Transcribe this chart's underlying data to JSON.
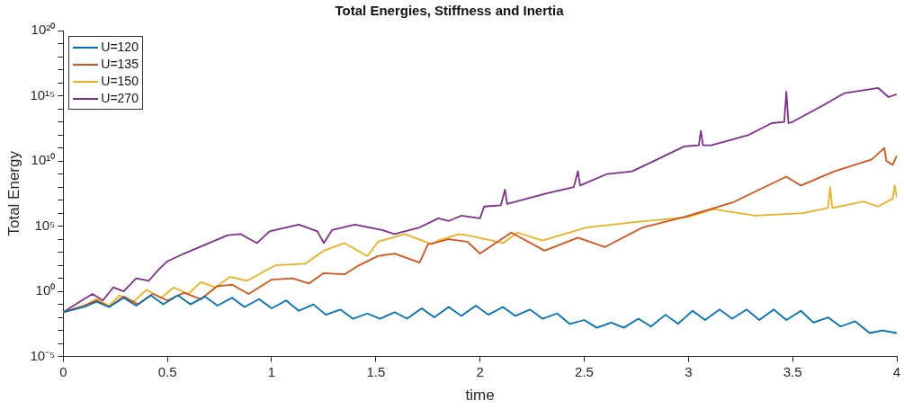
{
  "chart_data": {
    "type": "line",
    "title": "Total Energies, Stiffness and Inertia",
    "xlabel": "time",
    "ylabel": "Total Energy",
    "log": "y",
    "grid": false,
    "legend": "top left",
    "marker": "none",
    "line_style": "solid",
    "xlim": [
      0,
      4
    ],
    "xticks": [
      0,
      0.5,
      1,
      1.5,
      2,
      2.5,
      3,
      3.5,
      4
    ],
    "ylim": [
      1e-05,
      1e+20
    ],
    "yticks": [
      {
        "value": 1e-05,
        "label": "10⁻⁵"
      },
      {
        "value": 0.0001,
        "label": null
      },
      {
        "value": 0.001,
        "label": null
      },
      {
        "value": 0.01,
        "label": null
      },
      {
        "value": 0.1,
        "label": null
      },
      {
        "value": 1,
        "label": "10⁰"
      },
      {
        "value": 10.0,
        "label": null
      },
      {
        "value": 100.0,
        "label": null
      },
      {
        "value": 1000.0,
        "label": null
      },
      {
        "value": 10000.0,
        "label": null
      },
      {
        "value": 100000.0,
        "label": "10⁵"
      },
      {
        "value": 1000000.0,
        "label": null
      },
      {
        "value": 10000000.0,
        "label": null
      },
      {
        "value": 100000000.0,
        "label": null
      },
      {
        "value": 1000000000.0,
        "label": null
      },
      {
        "value": 10000000000.0,
        "label": "10¹⁰"
      },
      {
        "value": 100000000000.0,
        "label": null
      },
      {
        "value": 1000000000000.0,
        "label": null
      },
      {
        "value": 10000000000000.0,
        "label": null
      },
      {
        "value": 100000000000000.0,
        "label": null
      },
      {
        "value": 1000000000000000.0,
        "label": "10¹⁵"
      },
      {
        "value": 1e+16,
        "label": null
      },
      {
        "value": 1e+17,
        "label": null
      },
      {
        "value": 1e+18,
        "label": null
      },
      {
        "value": 1e+19,
        "label": null
      },
      {
        "value": 1e+20,
        "label": "10²⁰"
      }
    ],
    "series": [
      {
        "name": "U=120",
        "color": "#0072bd",
        "x": [
          0,
          0.1,
          0.16,
          0.22,
          0.29,
          0.35,
          0.42,
          0.48,
          0.55,
          0.61,
          0.68,
          0.74,
          0.81,
          0.87,
          0.94,
          1.0,
          1.07,
          1.13,
          1.2,
          1.26,
          1.33,
          1.39,
          1.46,
          1.52,
          1.59,
          1.65,
          1.72,
          1.78,
          1.85,
          1.91,
          1.98,
          2.04,
          2.11,
          2.17,
          2.24,
          2.3,
          2.37,
          2.43,
          2.5,
          2.56,
          2.63,
          2.69,
          2.76,
          2.82,
          2.89,
          2.95,
          3.02,
          3.08,
          3.15,
          3.21,
          3.28,
          3.34,
          3.41,
          3.47,
          3.54,
          3.6,
          3.67,
          3.73,
          3.8,
          3.87,
          3.93,
          4.0
        ],
        "values": [
          0.025,
          0.063,
          0.16,
          0.063,
          0.32,
          0.079,
          0.5,
          0.1,
          0.5,
          0.1,
          0.4,
          0.079,
          0.32,
          0.063,
          0.25,
          0.05,
          0.2,
          0.032,
          0.1,
          0.016,
          0.04,
          0.0079,
          0.02,
          0.0079,
          0.025,
          0.0079,
          0.05,
          0.01,
          0.063,
          0.013,
          0.079,
          0.016,
          0.063,
          0.013,
          0.04,
          0.0079,
          0.02,
          0.0032,
          0.0063,
          0.0016,
          0.004,
          0.0016,
          0.0079,
          0.002,
          0.016,
          0.0032,
          0.032,
          0.0063,
          0.04,
          0.0079,
          0.04,
          0.0063,
          0.04,
          0.0063,
          0.032,
          0.004,
          0.01,
          0.002,
          0.005,
          0.00063,
          0.001,
          0.00063
        ]
      },
      {
        "name": "U=135",
        "color": "#d95319",
        "x": [
          0,
          0.1,
          0.16,
          0.22,
          0.29,
          0.36,
          0.43,
          0.5,
          0.58,
          0.66,
          0.74,
          0.81,
          0.89,
          1.0,
          1.1,
          1.18,
          1.25,
          1.35,
          1.42,
          1.51,
          1.59,
          1.71,
          1.75,
          1.85,
          1.94,
          2.0,
          2.15,
          2.31,
          2.47,
          2.6,
          2.78,
          2.98,
          3.21,
          3.47,
          3.54,
          3.7,
          3.88,
          3.94,
          3.95,
          3.98,
          4.0
        ],
        "values": [
          0.025,
          0.079,
          0.2,
          0.063,
          0.4,
          0.1,
          0.63,
          0.2,
          0.79,
          0.25,
          2.5,
          3.2,
          0.63,
          7.9,
          10.0,
          4.0,
          25.0,
          20.0,
          100.0,
          500.0,
          790.0,
          160.0,
          4000.0,
          10000.0,
          6300.0,
          790.0,
          32000.0,
          1300.0,
          13000.0,
          2500.0,
          79000.0,
          500000.0,
          6300000.0,
          630000000.0,
          130000000.0,
          1600000000.0,
          13000000000.0,
          100000000000.0,
          10000000000.0,
          5000000000.0,
          25000000000.0
        ]
      },
      {
        "name": "U=150",
        "color": "#edb120",
        "x": [
          0,
          0.1,
          0.16,
          0.22,
          0.27,
          0.33,
          0.4,
          0.47,
          0.53,
          0.6,
          0.66,
          0.73,
          0.8,
          0.88,
          1.02,
          1.16,
          1.25,
          1.35,
          1.46,
          1.51,
          1.64,
          1.77,
          1.8,
          1.9,
          1.97,
          2.11,
          2.18,
          2.3,
          2.51,
          2.74,
          3.0,
          3.12,
          3.32,
          3.55,
          3.67,
          3.68,
          3.69,
          3.84,
          3.91,
          3.98,
          3.99,
          4.0
        ],
        "values": [
          0.025,
          0.079,
          0.25,
          0.079,
          0.5,
          0.13,
          1.3,
          0.32,
          2.0,
          0.63,
          5.0,
          2.0,
          13.0,
          6.3,
          100.0,
          130.0,
          1300.0,
          5000.0,
          500.0,
          6300.0,
          25000.0,
          4000.0,
          7900.0,
          25000.0,
          16000.0,
          5000.0,
          32000.0,
          7900.0,
          79000.0,
          200000.0,
          500000.0,
          2000000.0,
          630000.0,
          1000000.0,
          2500000.0,
          100000000.0,
          2500000.0,
          7900000.0,
          3200000.0,
          13000000.0,
          130000000.0,
          16000000.0
        ]
      },
      {
        "name": "U=270",
        "color": "#7e2f8e",
        "x": [
          0,
          0.07,
          0.14,
          0.19,
          0.24,
          0.29,
          0.35,
          0.41,
          0.46,
          0.5,
          0.58,
          0.7,
          0.79,
          0.85,
          0.93,
          0.99,
          1.13,
          1.22,
          1.25,
          1.29,
          1.4,
          1.53,
          1.59,
          1.71,
          1.8,
          1.85,
          1.91,
          2.0,
          2.02,
          2.1,
          2.12,
          2.13,
          2.32,
          2.45,
          2.47,
          2.48,
          2.61,
          2.73,
          2.85,
          2.98,
          3.05,
          3.06,
          3.07,
          3.11,
          3.29,
          3.4,
          3.46,
          3.47,
          3.48,
          3.5,
          3.64,
          3.75,
          3.91,
          3.96,
          4.0
        ],
        "values": [
          0.025,
          0.13,
          0.63,
          0.2,
          2.0,
          1.0,
          10.0,
          6.3,
          50.0,
          200.0,
          790.0,
          5000.0,
          20000.0,
          25000.0,
          5000.0,
          40000.0,
          130000.0,
          40000.0,
          5000.0,
          50000.0,
          130000.0,
          50000.0,
          25000.0,
          79000.0,
          400000.0,
          250000.0,
          630000.0,
          400000.0,
          3200000.0,
          4000000.0,
          63000000.0,
          5000000.0,
          32000000.0,
          100000000.0,
          1600000000.0,
          130000000.0,
          1000000000.0,
          1600000000.0,
          13000000000.0,
          130000000000.0,
          160000000000.0,
          2000000000000.0,
          160000000000.0,
          160000000000.0,
          1000000000000.0,
          7900000000000.0,
          10000000000000.0,
          2000000000000000.0,
          7900000000000.0,
          10000000000000.0,
          160000000000000.0,
          1600000000000000.0,
          4000000000000000.0,
          790000000000000.0,
          1300000000000000.0
        ]
      }
    ]
  }
}
